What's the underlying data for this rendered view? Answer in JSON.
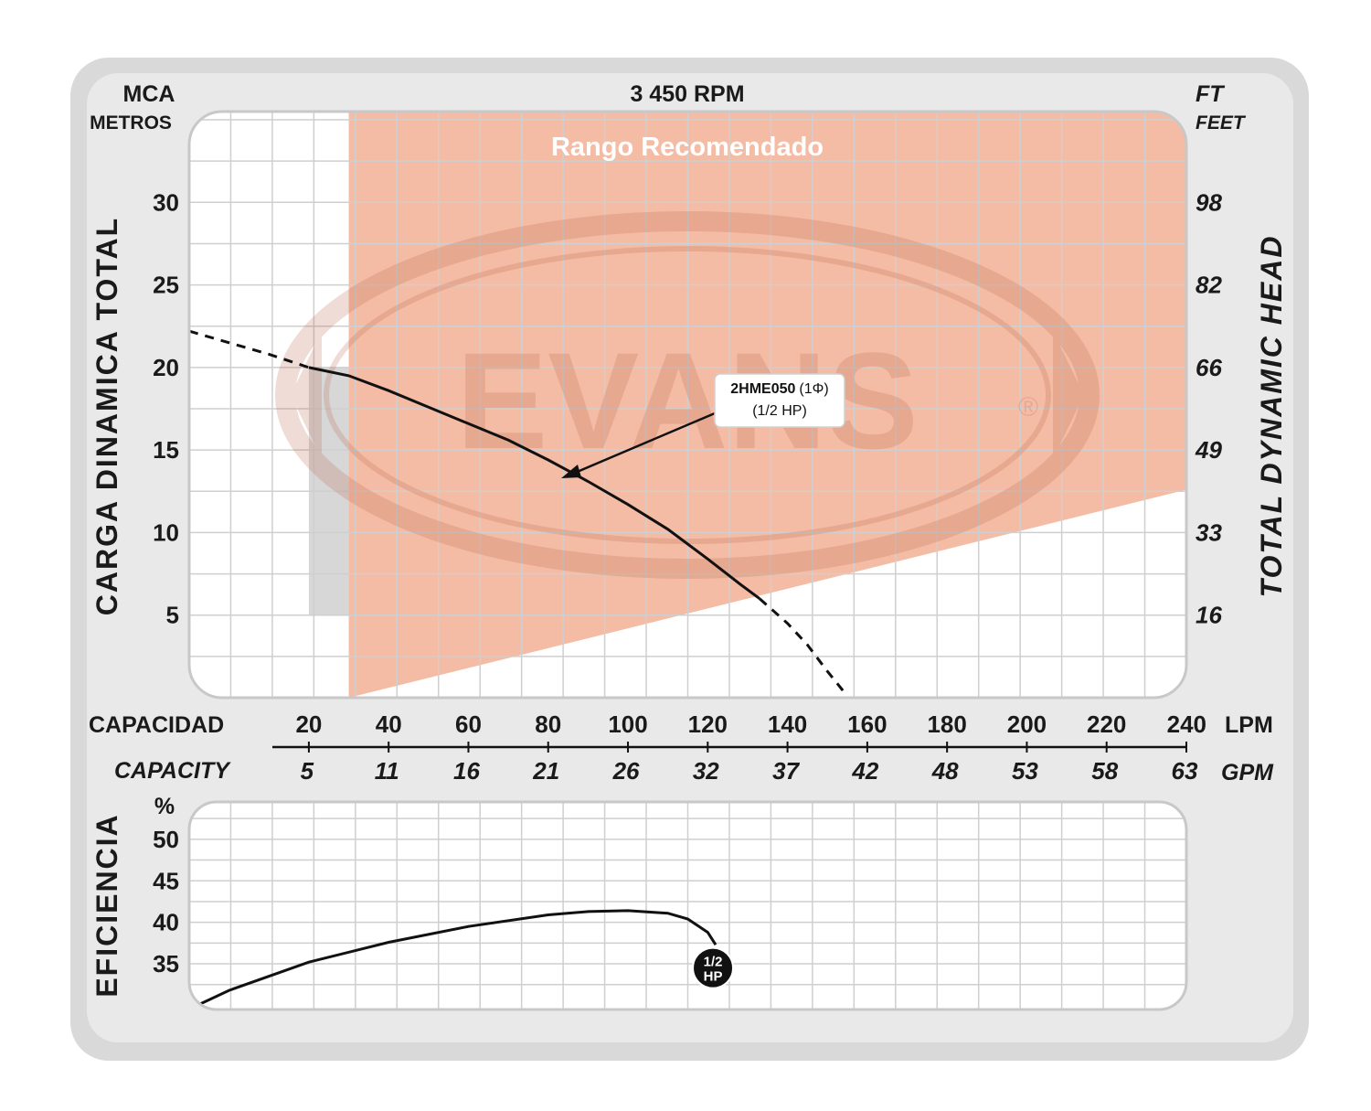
{
  "chart_data": [
    {
      "type": "line",
      "title": "3 450 RPM",
      "left_axis_unit": "MCA",
      "left_axis_unit_sub": "METROS",
      "right_axis_unit": "FT",
      "right_axis_unit_sub": "FEET",
      "ylabel": "CARGA DINAMICA TOTAL",
      "ylabel_right": "TOTAL DYNAMIC HEAD",
      "yticks": [
        "30",
        "25",
        "20",
        "15",
        "10",
        "5"
      ],
      "yticks_right": [
        "98",
        "82",
        "66",
        "49",
        "33",
        "16"
      ],
      "ylim": [
        0,
        35.5
      ],
      "xlim": [
        -10,
        240
      ],
      "recommended_range_label": "Rango Recomendado",
      "watermark": "EVANS",
      "recommended_range_polygon": [
        [
          30,
          0
        ],
        [
          30,
          35.5
        ],
        [
          240,
          35.5
        ],
        [
          240,
          12.6
        ],
        [
          30,
          0
        ]
      ],
      "series": [
        {
          "name": "2HME050 (1Φ) (1/2 HP)",
          "model": "2HME050",
          "phase": "(1Φ)",
          "power": "(1/2 HP)",
          "points": [
            [
              -10,
              22.2
            ],
            [
              0,
              21.5
            ],
            [
              10,
              20.8
            ],
            [
              20,
              20.0
            ],
            [
              30,
              19.5
            ],
            [
              40,
              18.6
            ],
            [
              50,
              17.6
            ],
            [
              60,
              16.6
            ],
            [
              70,
              15.6
            ],
            [
              80,
              14.4
            ],
            [
              90,
              13.1
            ],
            [
              100,
              11.7
            ],
            [
              110,
              10.2
            ],
            [
              120,
              8.4
            ],
            [
              128,
              6.9
            ],
            [
              133,
              6.0
            ],
            [
              140,
              4.5
            ],
            [
              145,
              3.2
            ],
            [
              150,
              1.6
            ],
            [
              154,
              0.4
            ]
          ],
          "solid_range": [
            20,
            133
          ]
        }
      ],
      "x_axis": {
        "label_lpm": "CAPACIDAD",
        "unit_lpm": "LPM",
        "ticks_lpm": [
          "20",
          "40",
          "60",
          "80",
          "100",
          "120",
          "140",
          "160",
          "180",
          "200",
          "220",
          "240"
        ],
        "label_gpm": "CAPACITY",
        "unit_gpm": "GPM",
        "ticks_gpm": [
          "5",
          "11",
          "16",
          "21",
          "26",
          "32",
          "37",
          "42",
          "48",
          "53",
          "58",
          "63"
        ]
      },
      "grid": true
    },
    {
      "type": "line",
      "ylabel": "EFICIENCIA",
      "yunit": "%",
      "yticks": [
        "50",
        "45",
        "40",
        "35"
      ],
      "ylim": [
        29.5,
        54.5
      ],
      "xlim": [
        -10,
        240
      ],
      "series": [
        {
          "name": "1/2 HP",
          "badge_top": "1/2",
          "badge_bottom": "HP",
          "points": [
            [
              -8,
              30.0
            ],
            [
              0,
              31.8
            ],
            [
              20,
              35.2
            ],
            [
              40,
              37.6
            ],
            [
              60,
              39.5
            ],
            [
              80,
              40.9
            ],
            [
              90,
              41.3
            ],
            [
              100,
              41.4
            ],
            [
              110,
              41.1
            ],
            [
              115,
              40.4
            ],
            [
              120,
              38.8
            ],
            [
              122,
              37.3
            ]
          ]
        }
      ],
      "grid": true
    }
  ],
  "colors": {
    "frame": "#d9d9d9",
    "plot_bg": "#ffffff",
    "grid": "#cfcfcf",
    "recommended": "#f4b8a0",
    "recommended_label": "#ffffff",
    "curve": "#111111",
    "badge": "#111111"
  }
}
